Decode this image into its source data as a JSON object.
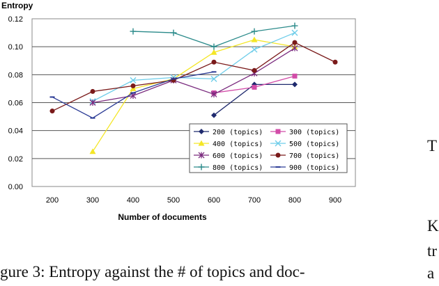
{
  "chart_data": {
    "type": "line",
    "title": "Entropy",
    "xlabel": "Number of documents",
    "ylabel": "Entropy",
    "categories": [
      "200",
      "300",
      "400",
      "500",
      "600",
      "700",
      "800",
      "900"
    ],
    "y_ticks": [
      "0.00",
      "0.02",
      "0.04",
      "0.06",
      "0.08",
      "0.10",
      "0.12"
    ],
    "ylim": [
      0,
      0.12
    ],
    "grid": "horizontal",
    "legend_position": "lower-right",
    "series": [
      {
        "name": "200 (topics)",
        "marker": "diamond",
        "color": "#1f2a6e",
        "values": [
          null,
          null,
          null,
          null,
          0.051,
          0.073,
          0.073,
          null
        ]
      },
      {
        "name": "300 (topics)",
        "marker": "square",
        "color": "#d24ca8",
        "values": [
          null,
          null,
          null,
          null,
          0.067,
          0.071,
          0.079,
          null
        ]
      },
      {
        "name": "400 (topics)",
        "marker": "triangle",
        "color": "#f4e626",
        "values": [
          null,
          0.025,
          0.07,
          0.077,
          0.096,
          0.105,
          0.1,
          null
        ]
      },
      {
        "name": "500 (topics)",
        "marker": "x",
        "color": "#6ecde9",
        "values": [
          null,
          0.061,
          0.076,
          0.078,
          0.077,
          0.098,
          0.11,
          null
        ]
      },
      {
        "name": "600 (topics)",
        "marker": "star",
        "color": "#7a2b7e",
        "values": [
          null,
          0.06,
          0.065,
          0.076,
          0.066,
          0.081,
          0.099,
          null
        ]
      },
      {
        "name": "700 (topics)",
        "marker": "circle",
        "color": "#7a1a1a",
        "values": [
          0.054,
          0.068,
          0.072,
          0.076,
          0.089,
          0.083,
          0.103,
          0.089
        ]
      },
      {
        "name": "800 (topics)",
        "marker": "plus",
        "color": "#2a8a8a",
        "values": [
          null,
          null,
          0.111,
          0.11,
          0.1,
          0.111,
          0.115,
          null
        ]
      },
      {
        "name": "900 (topics)",
        "marker": "dash",
        "color": "#2c3c96",
        "values": [
          0.064,
          0.049,
          0.067,
          0.077,
          0.082,
          null,
          null,
          null
        ]
      }
    ]
  },
  "caption": "gure 3: Entropy against the # of topics and doc-",
  "side_text": [
    "T",
    "K",
    "tr",
    "a"
  ]
}
